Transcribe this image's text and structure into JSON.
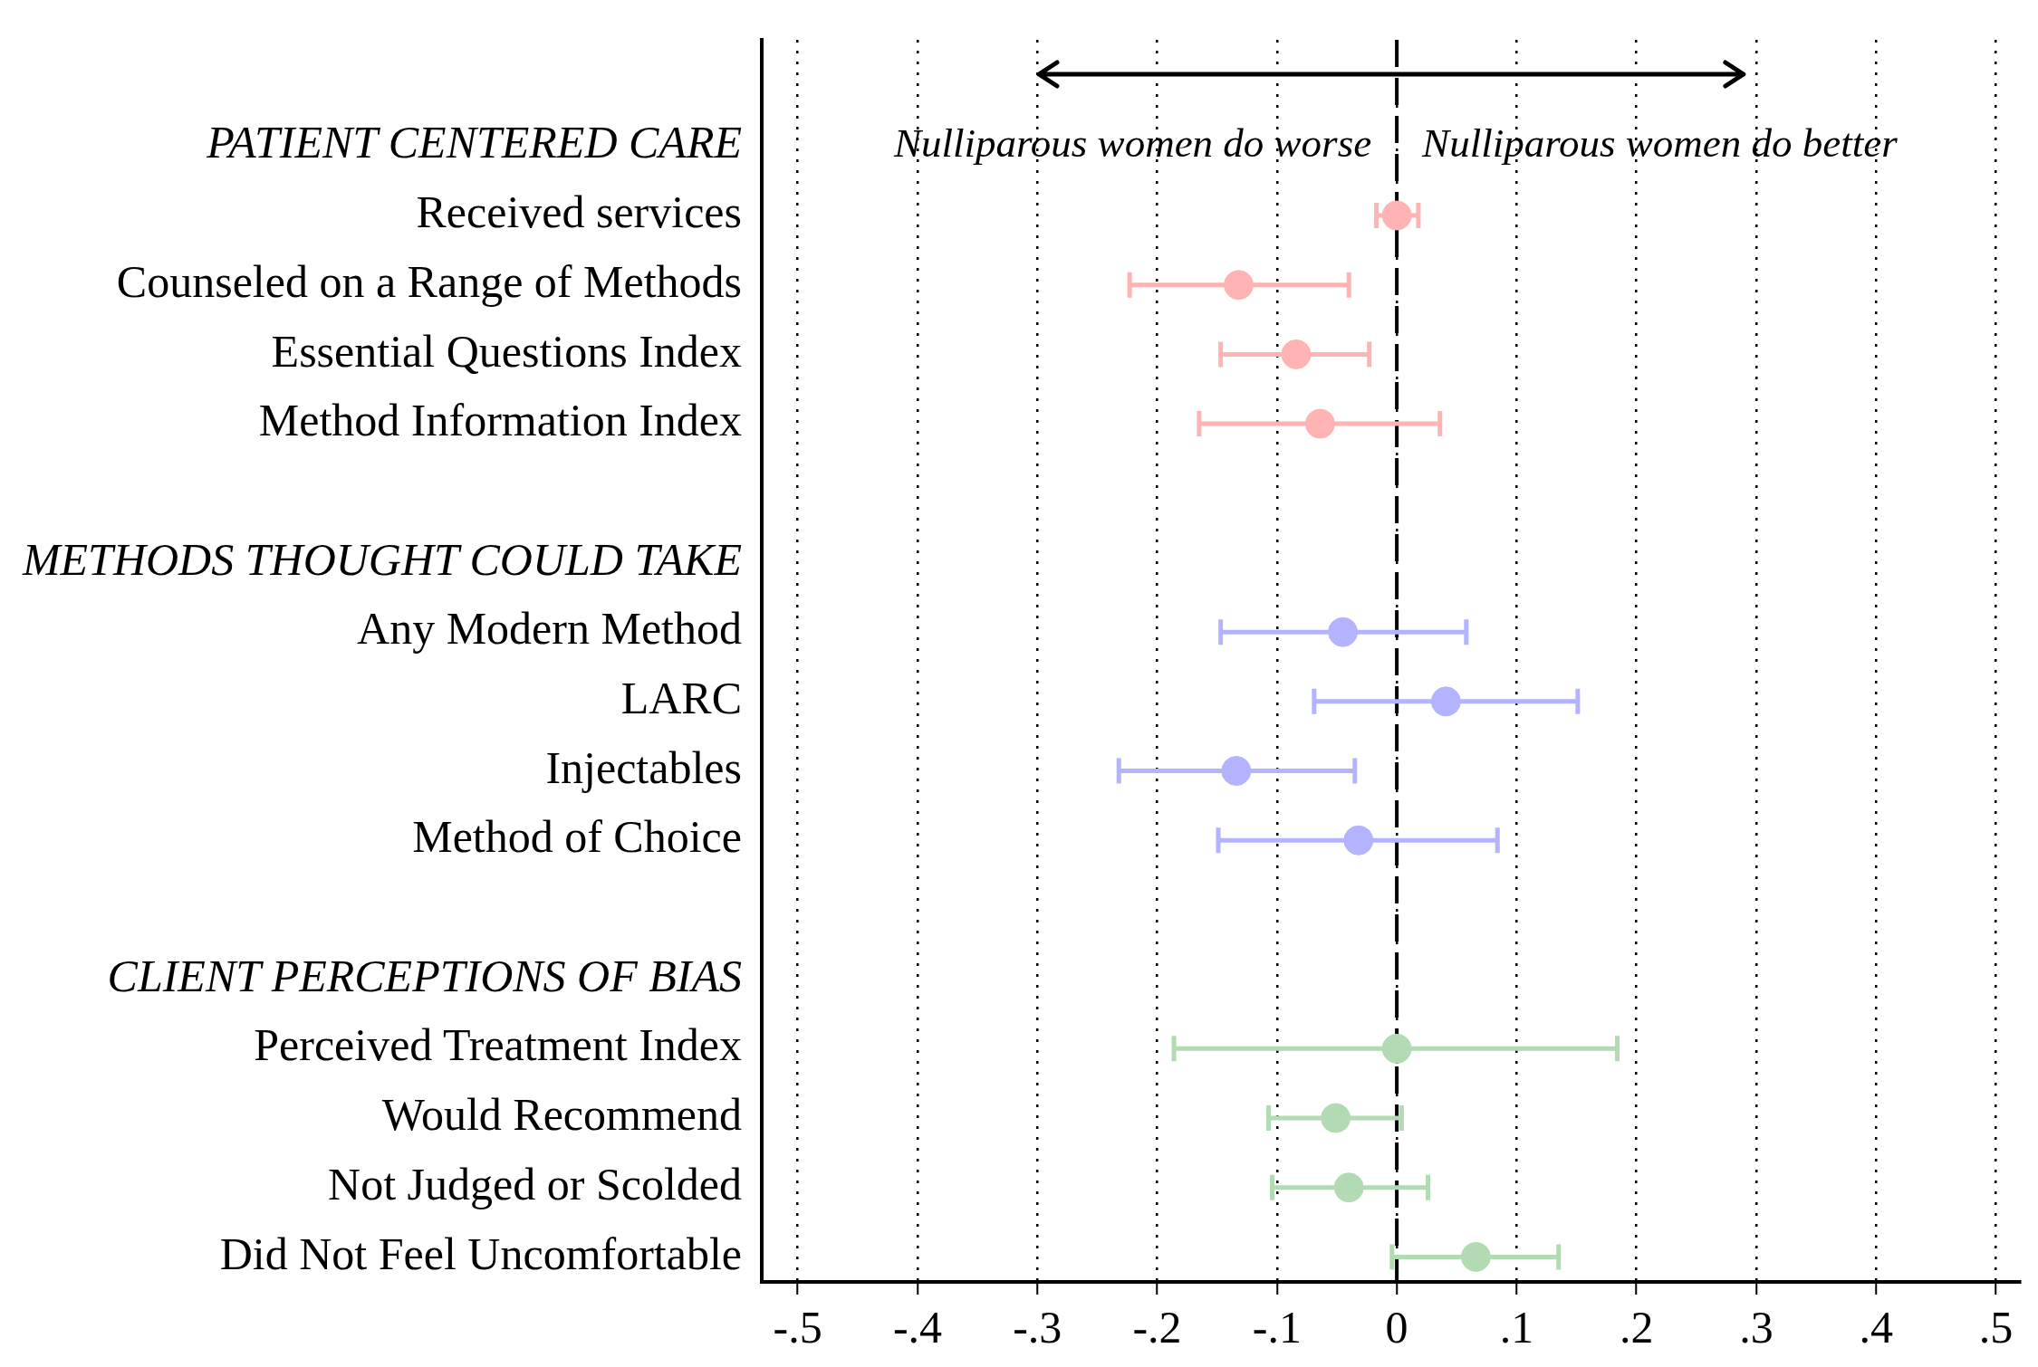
{
  "chart_data": {
    "type": "scatter",
    "orientation": "horizontal",
    "categories": [
      "PATIENT CENTERED CARE",
      "Received services",
      "Counseled on a Range of Methods",
      "Essential Questions Index",
      "Method Information Index",
      null,
      "METHODS THOUGHT COULD TAKE",
      "Any Modern Method",
      "LARC",
      "Injectables",
      "Method of Choice",
      null,
      "CLIENT PERCEPTIONS OF BIAS",
      "Perceived Treatment Index",
      "Would Recommend",
      "Not Judged or Scolded",
      "Did Not Feel Uncomfortable"
    ],
    "series": [
      {
        "color": "#ffb3b3",
        "values": [
          null,
          0,
          -0.132,
          -0.084,
          -0.064,
          null,
          null,
          null,
          null,
          null,
          null,
          null,
          null,
          null,
          null,
          null,
          null
        ],
        "errors": [
          null,
          [
            -0.017,
            0.018
          ],
          [
            -0.223,
            -0.04
          ],
          [
            -0.147,
            -0.023
          ],
          [
            -0.165,
            0.036
          ],
          null,
          null,
          null,
          null,
          null,
          null,
          null,
          null,
          null,
          null,
          null,
          null
        ]
      },
      {
        "color": "#b3b3ff",
        "values": [
          null,
          null,
          null,
          null,
          null,
          null,
          null,
          -0.045,
          0.041,
          -0.134,
          -0.032,
          null,
          null,
          null,
          null,
          null,
          null
        ],
        "errors": [
          null,
          null,
          null,
          null,
          null,
          null,
          null,
          [
            -0.147,
            0.058
          ],
          [
            -0.069,
            0.151
          ],
          [
            -0.232,
            -0.035
          ],
          [
            -0.149,
            0.084
          ],
          null,
          null,
          null,
          null,
          null,
          null
        ]
      },
      {
        "color": "#b3dbb3",
        "values": [
          null,
          null,
          null,
          null,
          null,
          null,
          null,
          null,
          null,
          null,
          null,
          null,
          null,
          0,
          -0.051,
          -0.04,
          0.066
        ],
        "errors": [
          null,
          null,
          null,
          null,
          null,
          null,
          null,
          null,
          null,
          null,
          null,
          null,
          null,
          [
            -0.186,
            0.184
          ],
          [
            -0.107,
            0.004
          ],
          [
            -0.104,
            0.026
          ],
          [
            -0.004,
            0.135
          ]
        ]
      }
    ],
    "xlim": [
      -0.53,
      0.52
    ],
    "xticks": [
      {
        "value": -0.5,
        "label": "-.5"
      },
      {
        "value": -0.4,
        "label": "-.4"
      },
      {
        "value": -0.3,
        "label": "-.3"
      },
      {
        "value": -0.2,
        "label": "-.2"
      },
      {
        "value": -0.1,
        "label": "-.1"
      },
      0,
      {
        "value": 0.1,
        "label": ".1"
      },
      {
        "value": 0.2,
        "label": ".2"
      },
      {
        "value": 0.3,
        "label": ".3"
      },
      {
        "value": 0.4,
        "label": ".4"
      },
      {
        "value": 0.5,
        "label": ".5"
      }
    ],
    "grid": "x",
    "marker": "circle",
    "legend": false,
    "ref_lines": [
      {
        "axis": "x",
        "value": 0,
        "color": "#000000",
        "line_style": "dashed"
      }
    ],
    "annotations": [
      "Nulliparous women do worse",
      "Nulliparous women do better"
    ]
  }
}
